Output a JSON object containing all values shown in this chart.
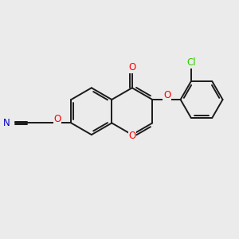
{
  "bg_color": "#ebebeb",
  "bond_color": "#1a1a1a",
  "bond_width": 1.4,
  "atom_colors": {
    "O": "#ff0000",
    "N": "#0000cc",
    "Cl": "#33cc00",
    "C": "#1a1a1a"
  },
  "font_size": 8.5
}
